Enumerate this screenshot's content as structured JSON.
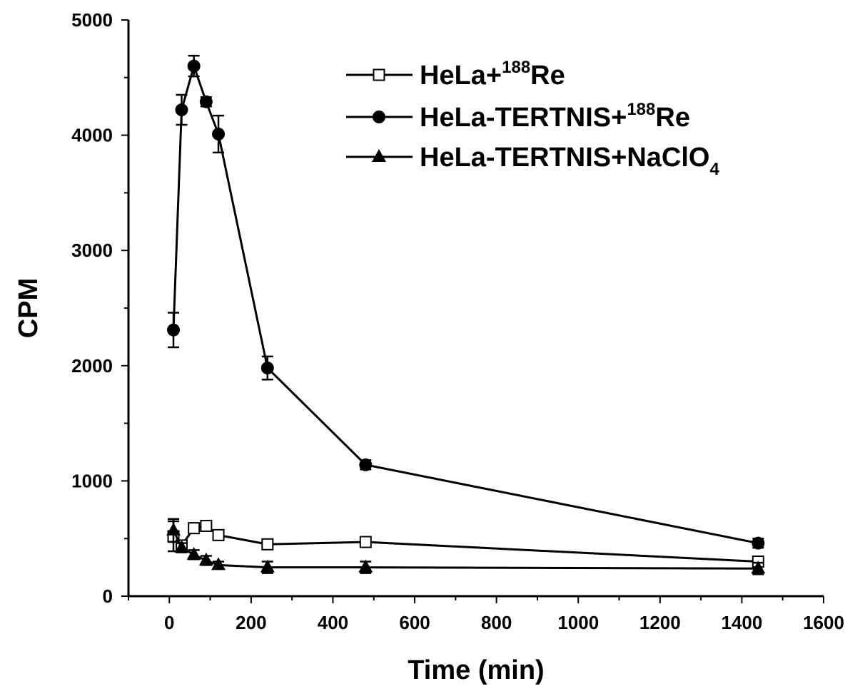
{
  "chart_data": {
    "type": "line",
    "xlabel": "Time (min)",
    "ylabel": "CPM",
    "xlim": [
      -100,
      1600
    ],
    "ylim": [
      0,
      5000
    ],
    "x_ticks": [
      0,
      200,
      400,
      600,
      800,
      1000,
      1200,
      1400,
      1600
    ],
    "y_ticks": [
      0,
      1000,
      2000,
      3000,
      4000,
      5000
    ],
    "x_tick_labels": [
      "0",
      "200",
      "400",
      "600",
      "800",
      "1000",
      "1200",
      "1400",
      "1600"
    ],
    "y_tick_labels": [
      "0",
      "1000",
      "2000",
      "3000",
      "4000",
      "5000"
    ],
    "legend_position": "top-right",
    "grid": false,
    "series": [
      {
        "name": "HeLa+188Re",
        "legend": {
          "base": "HeLa+",
          "sup": "188",
          "rest": "Re",
          "sub": ""
        },
        "marker": "open-square",
        "color": "#000000",
        "points": [
          {
            "x": 10,
            "y": 520,
            "err": 130
          },
          {
            "x": 30,
            "y": 440,
            "err": 40
          },
          {
            "x": 60,
            "y": 590,
            "err": 40
          },
          {
            "x": 90,
            "y": 610,
            "err": 40
          },
          {
            "x": 120,
            "y": 530,
            "err": 40
          },
          {
            "x": 240,
            "y": 450,
            "err": 40
          },
          {
            "x": 480,
            "y": 470,
            "err": 40
          },
          {
            "x": 1440,
            "y": 300,
            "err": 30
          }
        ]
      },
      {
        "name": "HeLa-TERTNIS+188Re",
        "legend": {
          "base": "HeLa-TERTNIS+",
          "sup": "188",
          "rest": "Re",
          "sub": ""
        },
        "marker": "filled-circle",
        "color": "#000000",
        "points": [
          {
            "x": 10,
            "y": 2310,
            "err": 150
          },
          {
            "x": 30,
            "y": 4220,
            "err": 130
          },
          {
            "x": 60,
            "y": 4600,
            "err": 90
          },
          {
            "x": 90,
            "y": 4290,
            "err": 40
          },
          {
            "x": 120,
            "y": 4010,
            "err": 160
          },
          {
            "x": 240,
            "y": 1980,
            "err": 100
          },
          {
            "x": 480,
            "y": 1140,
            "err": 40
          },
          {
            "x": 1440,
            "y": 460,
            "err": 40
          }
        ]
      },
      {
        "name": "HeLa-TERTNIS+NaClO4",
        "legend": {
          "base": "HeLa-TERTNIS+NaClO",
          "sup": "",
          "rest": "",
          "sub": "4"
        },
        "marker": "filled-triangle",
        "color": "#000000",
        "points": [
          {
            "x": 10,
            "y": 570,
            "err": 100
          },
          {
            "x": 30,
            "y": 420,
            "err": 40
          },
          {
            "x": 60,
            "y": 360,
            "err": 40
          },
          {
            "x": 90,
            "y": 310,
            "err": 40
          },
          {
            "x": 120,
            "y": 270,
            "err": 30
          },
          {
            "x": 240,
            "y": 250,
            "err": 50
          },
          {
            "x": 480,
            "y": 250,
            "err": 50
          },
          {
            "x": 1440,
            "y": 240,
            "err": 50
          }
        ]
      }
    ]
  }
}
